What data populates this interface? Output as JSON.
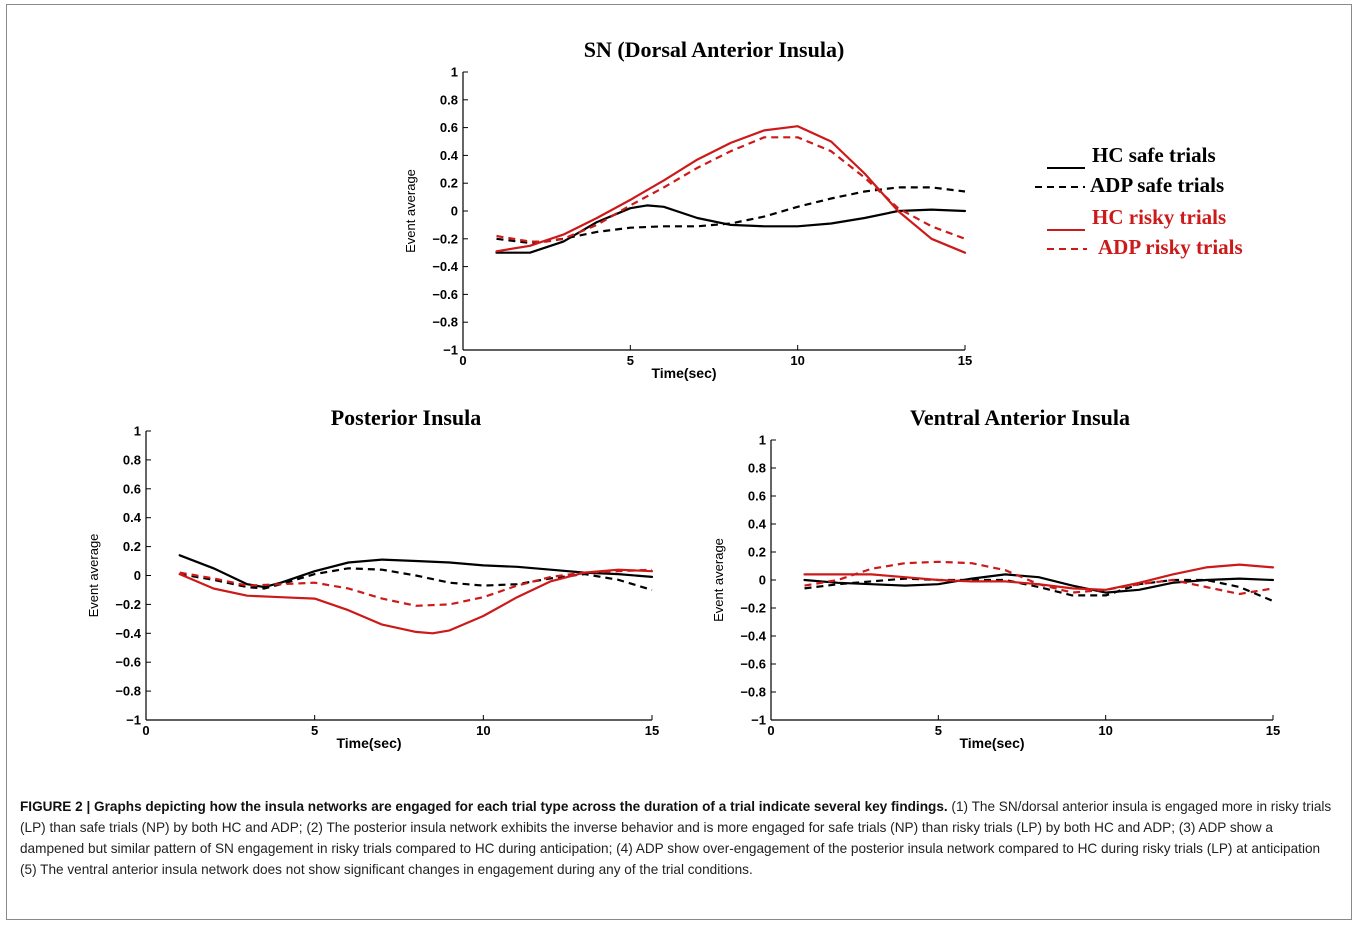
{
  "colors": {
    "black": "#000000",
    "red": "#cc1a1a"
  },
  "chart_data": [
    {
      "type": "line",
      "title": "SN (Dorsal Anterior  Insula)",
      "xlabel": "Time(sec)",
      "ylabel": "Event average",
      "xlim": [
        0,
        15
      ],
      "ylim": [
        -1,
        1
      ],
      "xticks": [
        "0",
        "5",
        "10",
        "15"
      ],
      "yticks": [
        "1",
        "0.8",
        "0.6",
        "0.4",
        "0.2",
        "0",
        "−0.2",
        "−0.4",
        "−0.6",
        "−0.8",
        "−1"
      ],
      "grid": false,
      "legend_position": "right",
      "series": [
        {
          "name": "HC  safe trials",
          "color": "#000000",
          "dash": "solid",
          "x": [
            1,
            2,
            3,
            4,
            5,
            5.5,
            6,
            7,
            8,
            9,
            10,
            11,
            12,
            13,
            14,
            15
          ],
          "y": [
            -0.3,
            -0.3,
            -0.22,
            -0.08,
            0.02,
            0.04,
            0.03,
            -0.05,
            -0.1,
            -0.11,
            -0.11,
            -0.09,
            -0.05,
            0,
            0.01,
            0
          ]
        },
        {
          "name": "ADP safe trials",
          "color": "#000000",
          "dash": "dashed",
          "x": [
            1,
            2,
            3,
            4,
            5,
            6,
            7,
            8,
            9,
            10,
            11,
            12,
            13,
            14,
            15
          ],
          "y": [
            -0.2,
            -0.23,
            -0.2,
            -0.15,
            -0.12,
            -0.11,
            -0.11,
            -0.09,
            -0.04,
            0.03,
            0.09,
            0.14,
            0.17,
            0.17,
            0.14
          ]
        },
        {
          "name": "HC  risky trials",
          "color": "#cc1a1a",
          "dash": "solid",
          "x": [
            1,
            2,
            3,
            4,
            5,
            6,
            7,
            8,
            9,
            10,
            11,
            12,
            13,
            14,
            15
          ],
          "y": [
            -0.29,
            -0.25,
            -0.17,
            -0.05,
            0.08,
            0.22,
            0.37,
            0.49,
            0.58,
            0.61,
            0.5,
            0.27,
            0.0,
            -0.2,
            -0.3
          ]
        },
        {
          "name": "ADP risky  trials",
          "color": "#cc1a1a",
          "dash": "dashed",
          "x": [
            1,
            2,
            2.5,
            3,
            4,
            5,
            6,
            7,
            8,
            9,
            10,
            11,
            12,
            13,
            14,
            15
          ],
          "y": [
            -0.18,
            -0.22,
            -0.22,
            -0.2,
            -0.1,
            0.04,
            0.17,
            0.31,
            0.43,
            0.53,
            0.53,
            0.43,
            0.24,
            0.02,
            -0.11,
            -0.2
          ]
        }
      ]
    },
    {
      "type": "line",
      "title": "Posterior Insula",
      "xlabel": "Time(sec)",
      "ylabel": "Event average",
      "xlim": [
        0,
        15
      ],
      "ylim": [
        -1,
        1
      ],
      "xticks": [
        "0",
        "5",
        "10",
        "15"
      ],
      "yticks": [
        "1",
        "0.8",
        "0.6",
        "0.4",
        "0.2",
        "0",
        "−0.2",
        "−0.4",
        "−0.6",
        "−0.8",
        "−1"
      ],
      "grid": false,
      "series": [
        {
          "name": "HC  safe trials",
          "color": "#000000",
          "dash": "solid",
          "x": [
            1,
            2,
            3,
            3.5,
            4,
            5,
            6,
            7,
            8,
            9,
            10,
            11,
            12,
            13,
            14,
            15
          ],
          "y": [
            0.14,
            0.05,
            -0.06,
            -0.08,
            -0.05,
            0.03,
            0.09,
            0.11,
            0.1,
            0.09,
            0.07,
            0.06,
            0.04,
            0.02,
            0.01,
            -0.01
          ]
        },
        {
          "name": "ADP safe trials",
          "color": "#000000",
          "dash": "dashed",
          "x": [
            1,
            2,
            3,
            3.5,
            4,
            5,
            6,
            7,
            8,
            9,
            10,
            11,
            12,
            13,
            14,
            15
          ],
          "y": [
            0.01,
            -0.03,
            -0.08,
            -0.09,
            -0.06,
            0.01,
            0.05,
            0.04,
            0.0,
            -0.05,
            -0.07,
            -0.06,
            -0.02,
            0.01,
            -0.03,
            -0.1
          ]
        },
        {
          "name": "HC  risky trials",
          "color": "#cc1a1a",
          "dash": "solid",
          "x": [
            1,
            2,
            3,
            4,
            5,
            6,
            7,
            8,
            8.5,
            9,
            10,
            11,
            12,
            13,
            14,
            15
          ],
          "y": [
            0.01,
            -0.09,
            -0.14,
            -0.15,
            -0.16,
            -0.24,
            -0.34,
            -0.39,
            -0.4,
            -0.38,
            -0.28,
            -0.15,
            -0.04,
            0.02,
            0.04,
            0.03
          ]
        },
        {
          "name": "ADP risky  trials",
          "color": "#cc1a1a",
          "dash": "dashed",
          "x": [
            1,
            2,
            3,
            4,
            5,
            6,
            7,
            8,
            9,
            10,
            11,
            12,
            13,
            14,
            15
          ],
          "y": [
            0.02,
            -0.02,
            -0.07,
            -0.06,
            -0.05,
            -0.09,
            -0.16,
            -0.21,
            -0.2,
            -0.15,
            -0.07,
            -0.01,
            0.02,
            0.03,
            0.04
          ]
        }
      ]
    },
    {
      "type": "line",
      "title": "Ventral Anterior  Insula",
      "xlabel": "Time(sec)",
      "ylabel": "Event average",
      "xlim": [
        0,
        15
      ],
      "ylim": [
        -1,
        1
      ],
      "xticks": [
        "0",
        "5",
        "10",
        "15"
      ],
      "yticks": [
        "1",
        "0.8",
        "0.6",
        "0.4",
        "0.2",
        "0",
        "−0.2",
        "−0.4",
        "−0.6",
        "−0.8",
        "−1"
      ],
      "grid": false,
      "series": [
        {
          "name": "HC  safe trials",
          "color": "#000000",
          "dash": "solid",
          "x": [
            1,
            2,
            3,
            4,
            5,
            6,
            7,
            8,
            9,
            10,
            11,
            12,
            13,
            14,
            15
          ],
          "y": [
            0.0,
            -0.02,
            -0.03,
            -0.04,
            -0.03,
            0.01,
            0.04,
            0.02,
            -0.04,
            -0.09,
            -0.07,
            -0.02,
            0.0,
            0.01,
            0.0
          ]
        },
        {
          "name": "ADP safe trials",
          "color": "#000000",
          "dash": "dashed",
          "x": [
            1,
            2,
            3,
            4,
            5,
            6,
            7,
            8,
            9,
            10,
            11,
            12,
            13,
            14,
            15
          ],
          "y": [
            -0.06,
            -0.03,
            -0.01,
            0.01,
            0.0,
            0.0,
            0.0,
            -0.05,
            -0.11,
            -0.11,
            -0.03,
            0.0,
            0.0,
            -0.05,
            -0.15
          ]
        },
        {
          "name": "HC  risky trials",
          "color": "#cc1a1a",
          "dash": "solid",
          "x": [
            1,
            2,
            3,
            4,
            5,
            6,
            7,
            8,
            9,
            10,
            11,
            12,
            13,
            14,
            15
          ],
          "y": [
            0.04,
            0.04,
            0.04,
            0.02,
            0.0,
            -0.01,
            -0.01,
            -0.03,
            -0.06,
            -0.07,
            -0.02,
            0.04,
            0.09,
            0.11,
            0.09
          ]
        },
        {
          "name": "ADP risky  trials",
          "color": "#cc1a1a",
          "dash": "dashed",
          "x": [
            1,
            2,
            3,
            4,
            5,
            6,
            7,
            8,
            9,
            10,
            11,
            12,
            13,
            14,
            15
          ],
          "y": [
            -0.04,
            0.0,
            0.08,
            0.12,
            0.13,
            0.12,
            0.07,
            -0.03,
            -0.09,
            -0.07,
            -0.03,
            0.0,
            -0.05,
            -0.1,
            -0.06
          ]
        }
      ]
    }
  ],
  "caption": {
    "lead": "FIGURE 2 | Graphs depicting how the insula networks are engaged for each trial type across the duration of a trial indicate several key findings.",
    "text": " (1) The SN/dorsal anterior insula is engaged more in risky trials (LP) than safe trials (NP) by both HC and ADP; (2) The posterior insula network exhibits the inverse behavior and is more engaged for safe trials (NP) than risky trials (LP) by both HC and ADP; (3) ADP show a dampened but similar pattern of SN engagement in risky trials compared to HC during anticipation; (4) ADP show over-engagement of the posterior insula network compared to HC during risky trials (LP) at anticipation (5) The ventral anterior insula network does not show significant changes in engagement during any of the trial conditions."
  }
}
